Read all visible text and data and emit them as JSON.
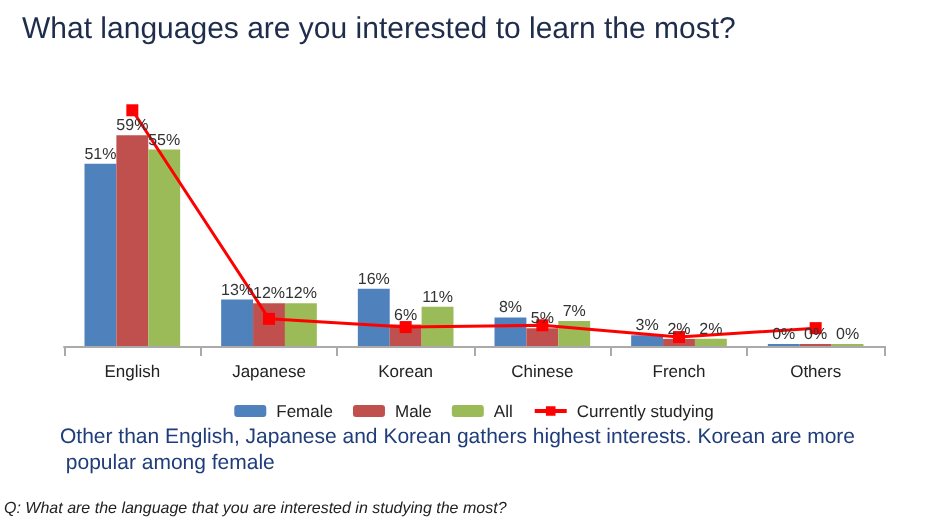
{
  "chart_data": {
    "type": "bar",
    "title": "What languages are you interested to learn the most?",
    "categories": [
      "English",
      "Japanese",
      "Korean",
      "Chinese",
      "French",
      "Others"
    ],
    "series": [
      {
        "name": "Female",
        "color": "#4f81bd",
        "values": [
          51,
          13,
          16,
          8,
          3,
          0
        ],
        "value_labels": [
          "51%",
          "13%",
          "16%",
          "8%",
          "3%",
          "0%"
        ]
      },
      {
        "name": "Male",
        "color": "#c0504d",
        "values": [
          59,
          12,
          6,
          5,
          2,
          0
        ],
        "value_labels": [
          "59%",
          "12%",
          "6%",
          "5%",
          "2%",
          "0%"
        ]
      },
      {
        "name": "All",
        "color": "#9bbb59",
        "values": [
          55,
          12,
          11,
          7,
          2,
          0
        ],
        "value_labels": [
          "55%",
          "12%",
          "11%",
          "7%",
          "2%",
          "0%"
        ]
      },
      {
        "name": "Currently studying",
        "color": "#ff0000",
        "type": "line",
        "marker": "square",
        "values": [
          66,
          7.6,
          5.3,
          5.8,
          2.5,
          5
        ]
      }
    ],
    "legend": "bottom",
    "annotations": [
      "Other than English, Japanese and Korean gathers highest interests. Korean are more popular among female",
      "Q: What are the language that you are interested in studying the most?"
    ]
  }
}
